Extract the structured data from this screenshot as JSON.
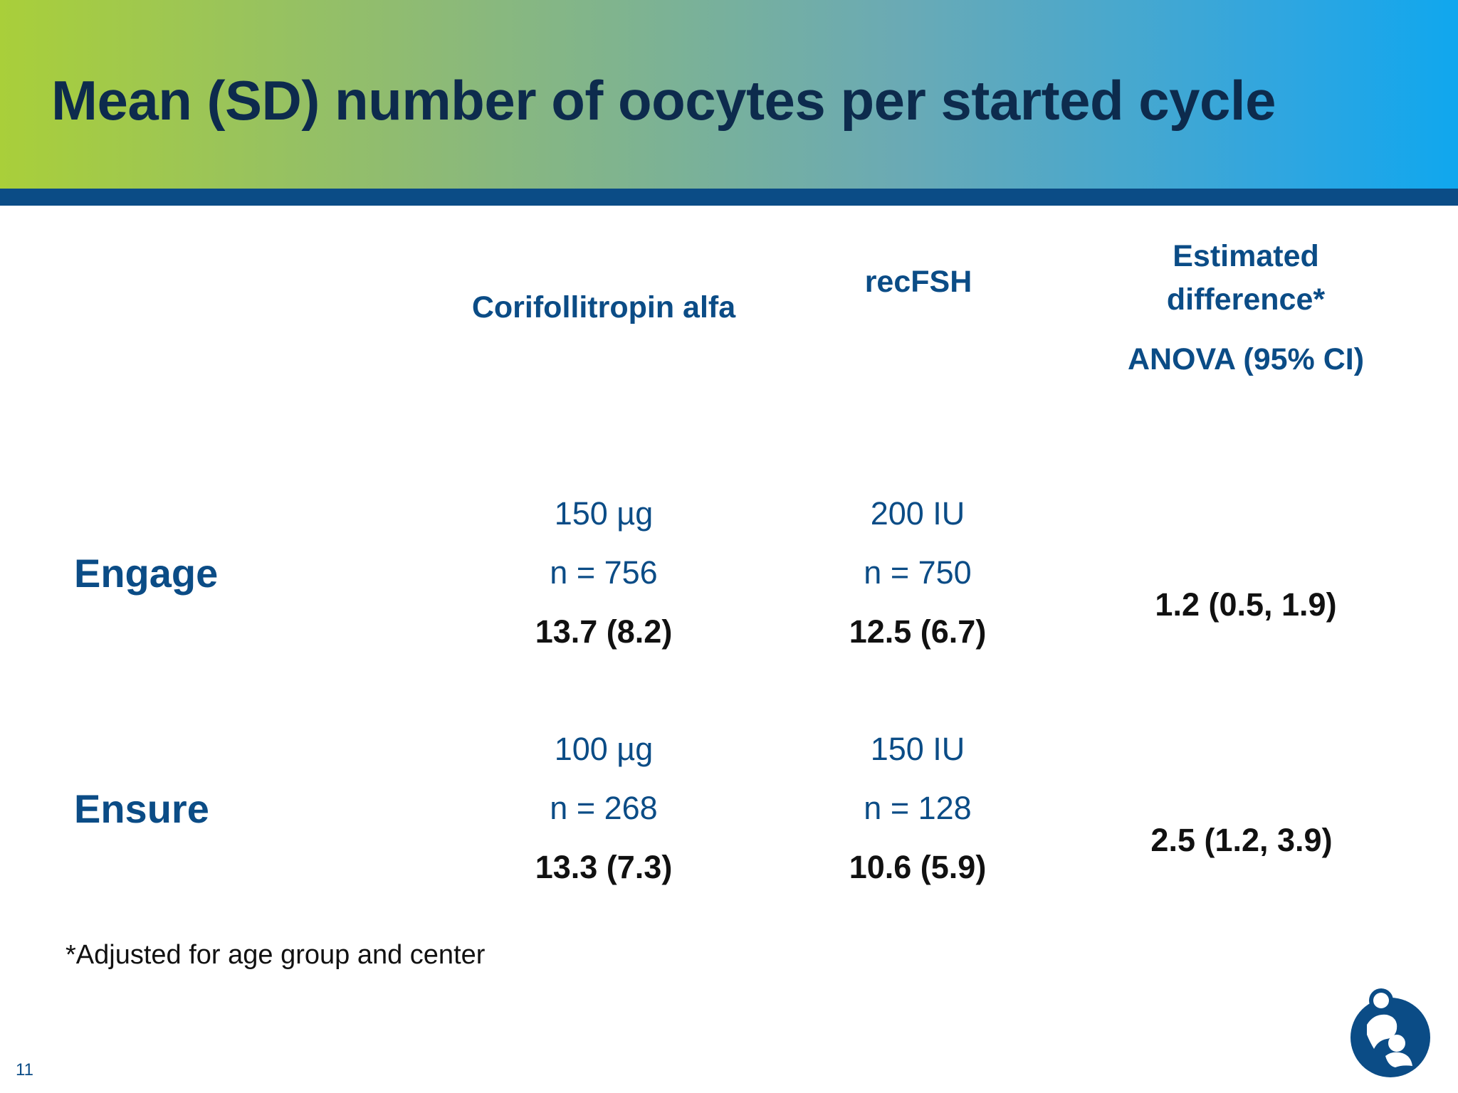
{
  "slide": {
    "title": "Mean (SD) number of oocytes per started cycle",
    "page_number": "11",
    "footnote": "*Adjusted for age group and center"
  },
  "columns": {
    "corifollitropin": "Corifollitropin alfa",
    "recfsh": "recFSH",
    "difference_line1": "Estimated",
    "difference_line2": "difference*",
    "difference_line3": "ANOVA (95% CI)"
  },
  "rows": [
    {
      "label": "Engage",
      "corifollitropin": {
        "dose": "150 µg",
        "n": "n = 756",
        "mean_sd": "13.7 (8.2)"
      },
      "recfsh": {
        "dose": "200 IU",
        "n": "n = 750",
        "mean_sd": "12.5 (6.7)"
      },
      "difference": "1.2 (0.5, 1.9)"
    },
    {
      "label": "Ensure",
      "corifollitropin": {
        "dose": "100 µg",
        "n": "n = 268",
        "mean_sd": "13.3 (7.3)"
      },
      "recfsh": {
        "dose": "150 IU",
        "n": "n = 128",
        "mean_sd": "10.6 (5.9)"
      },
      "difference": "2.5 (1.2, 3.9)"
    }
  ],
  "colors": {
    "title": "#0d2b4d",
    "accent_blue": "#0b4c86",
    "gradient_start": "#a9cf3a",
    "gradient_end": "#10a7ee"
  },
  "icons": {
    "logo": "parent-child-logo-icon"
  }
}
